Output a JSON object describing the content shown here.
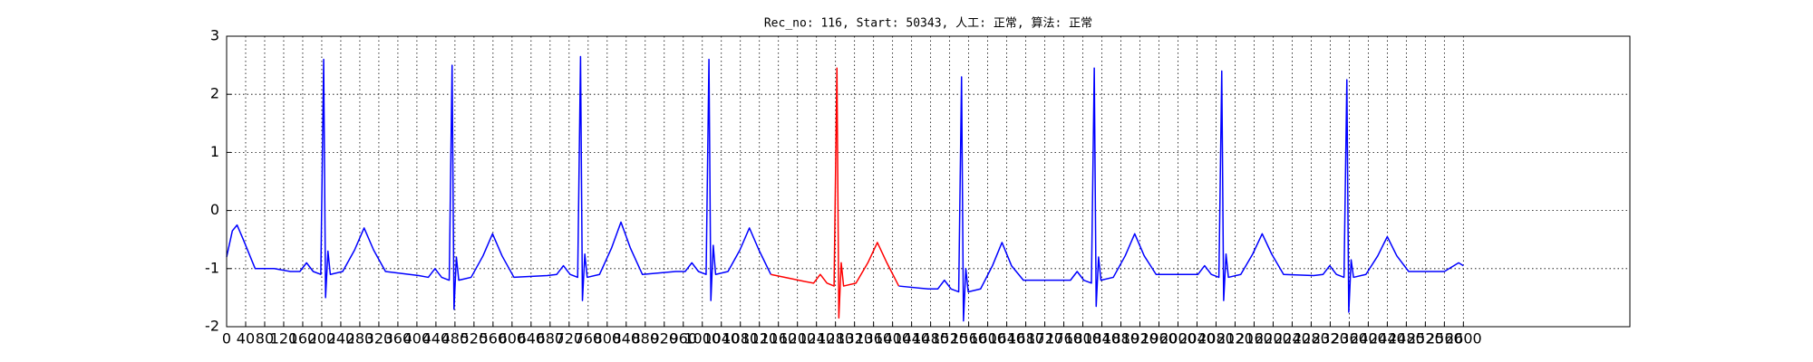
{
  "chart_data": {
    "type": "line",
    "title": "Rec_no: 116, Start: 50343, 人工: 正常, 算法: 正常",
    "x": [
      0,
      12,
      22,
      35,
      60,
      100,
      134,
      154,
      168,
      182,
      198,
      204,
      208,
      213,
      218,
      244,
      269,
      289,
      309,
      334,
      404,
      424,
      438,
      452,
      468,
      474,
      478,
      483,
      488,
      514,
      539,
      559,
      579,
      604,
      674,
      694,
      708,
      722,
      738,
      744,
      748,
      753,
      758,
      784,
      809,
      829,
      849,
      874,
      944,
      964,
      978,
      992,
      1008,
      1014,
      1018,
      1023,
      1028,
      1054,
      1079,
      1099,
      1119,
      1144,
      1214,
      1234,
      1248,
      1262,
      1277,
      1283,
      1287,
      1292,
      1297,
      1323,
      1348,
      1368,
      1388,
      1413,
      1475,
      1495,
      1509,
      1523,
      1539,
      1545,
      1549,
      1554,
      1559,
      1585,
      1610,
      1630,
      1650,
      1675,
      1754,
      1774,
      1788,
      1802,
      1818,
      1824,
      1828,
      1833,
      1838,
      1864,
      1889,
      1909,
      1929,
      1954,
      2022,
      2042,
      2056,
      2070,
      2086,
      2092,
      2096,
      2101,
      2106,
      2132,
      2157,
      2177,
      2197,
      2222,
      2285,
      2305,
      2319,
      2333,
      2349,
      2355,
      2359,
      2364,
      2369,
      2395,
      2420,
      2440,
      2460,
      2485,
      2560,
      2590,
      2600
    ],
    "series": [
      {
        "color": "#0000ff",
        "values": [
          -0.8,
          -0.35,
          -0.25,
          -0.5,
          -1.0,
          -1.0,
          -1.05,
          -1.05,
          -0.9,
          -1.05,
          -1.1,
          2.6,
          -1.5,
          -0.7,
          -1.1,
          -1.05,
          -0.68,
          -0.3,
          -0.68,
          -1.05,
          -1.12,
          -1.15,
          -1.0,
          -1.15,
          -1.2,
          2.5,
          -1.7,
          -0.8,
          -1.2,
          -1.15,
          -0.78,
          -0.4,
          -0.78,
          -1.15,
          -1.12,
          -1.1,
          -0.95,
          -1.1,
          -1.15,
          2.65,
          -1.55,
          -0.75,
          -1.15,
          -1.1,
          -0.65,
          -0.2,
          -0.65,
          -1.1,
          -1.05,
          -1.05,
          -0.9,
          -1.05,
          -1.1,
          2.6,
          -1.55,
          -0.6,
          -1.1,
          -1.05,
          -0.68,
          -0.3,
          -0.68,
          -1.1,
          null,
          null,
          null,
          null,
          null,
          null,
          null,
          null,
          null,
          null,
          null,
          null,
          null,
          -1.3,
          -1.35,
          -1.35,
          -1.2,
          -1.35,
          -1.4,
          2.3,
          -1.9,
          -1.0,
          -1.4,
          -1.35,
          -0.95,
          -0.55,
          -0.95,
          -1.2,
          -1.2,
          -1.2,
          -1.05,
          -1.2,
          -1.25,
          2.45,
          -1.65,
          -0.8,
          -1.2,
          -1.15,
          -0.78,
          -0.4,
          -0.78,
          -1.1,
          -1.1,
          -1.1,
          -0.95,
          -1.1,
          -1.15,
          2.4,
          -1.55,
          -0.75,
          -1.15,
          -1.1,
          -0.75,
          -0.4,
          -0.75,
          -1.1,
          -1.12,
          -1.1,
          -0.95,
          -1.1,
          -1.15,
          2.25,
          -1.75,
          -0.85,
          -1.15,
          -1.1,
          -0.78,
          -0.45,
          -0.78,
          -1.05,
          -1.05,
          -0.9,
          -0.95
        ]
      },
      {
        "color": "#ff0000",
        "values": [
          null,
          null,
          null,
          null,
          null,
          null,
          null,
          null,
          null,
          null,
          null,
          null,
          null,
          null,
          null,
          null,
          null,
          null,
          null,
          null,
          null,
          null,
          null,
          null,
          null,
          null,
          null,
          null,
          null,
          null,
          null,
          null,
          null,
          null,
          null,
          null,
          null,
          null,
          null,
          null,
          null,
          null,
          null,
          null,
          null,
          null,
          null,
          null,
          null,
          null,
          null,
          null,
          null,
          null,
          null,
          null,
          null,
          null,
          null,
          null,
          null,
          -1.1,
          -1.22,
          -1.25,
          -1.1,
          -1.25,
          -1.3,
          2.45,
          -1.85,
          -0.9,
          -1.3,
          -1.25,
          -0.9,
          -0.55,
          -0.9,
          -1.3,
          null,
          null,
          null,
          null,
          null,
          null,
          null,
          null,
          null,
          null,
          null,
          null,
          null,
          null,
          null,
          null,
          null,
          null,
          null,
          null,
          null,
          null,
          null,
          null,
          null,
          null,
          null,
          null,
          null,
          null,
          null,
          null,
          null,
          null,
          null,
          null,
          null,
          null,
          null,
          null,
          null,
          null,
          null,
          null,
          null,
          null,
          null,
          null,
          null,
          null,
          null,
          null,
          null,
          null,
          null,
          null,
          null,
          null,
          null
        ]
      }
    ],
    "xlim": [
      0,
      2950
    ],
    "ylim": [
      -2,
      3
    ],
    "xticks": [
      0,
      40,
      80,
      120,
      160,
      200,
      240,
      280,
      320,
      360,
      400,
      440,
      480,
      520,
      560,
      600,
      640,
      680,
      720,
      760,
      800,
      840,
      880,
      920,
      960,
      1000,
      1040,
      1080,
      1120,
      1160,
      1200,
      1240,
      1280,
      1320,
      1360,
      1400,
      1440,
      1480,
      1520,
      1560,
      1600,
      1640,
      1680,
      1720,
      1760,
      1800,
      1840,
      1880,
      1920,
      1960,
      2000,
      2040,
      2080,
      2120,
      2160,
      2200,
      2240,
      2280,
      2320,
      2360,
      2400,
      2440,
      2480,
      2520,
      2560,
      2600
    ],
    "yticks": [
      -2,
      -1,
      0,
      1,
      2,
      3
    ],
    "grid": true
  }
}
